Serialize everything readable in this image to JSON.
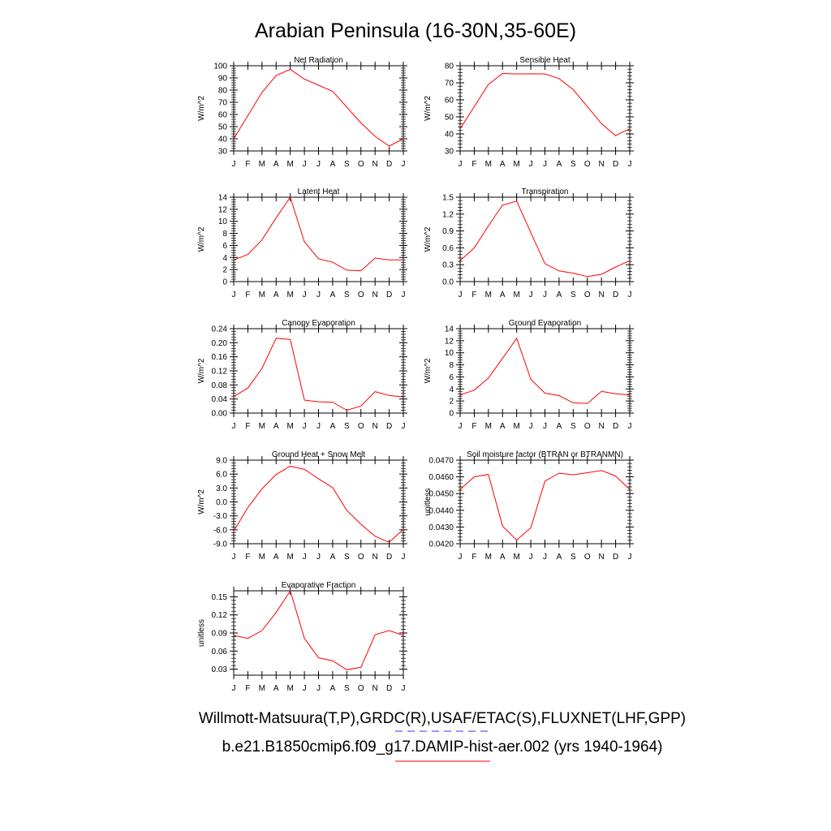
{
  "title": "Arabian Peninsula (16-30N,35-60E)",
  "legend": {
    "obs_label": "Willmott-Matsuura(T,P),GRDC(R),USAF/ETAC(S),FLUXNET(LHF,GPP)",
    "model_label": "b.e21.B1850cmip6.f09_g17.DAMIP-hist-aer.002 (yrs 1940-1964)",
    "obs_color": "#3333ff",
    "model_color": "#ff0000"
  },
  "month_labels": [
    "J",
    "F",
    "M",
    "A",
    "M",
    "J",
    "J",
    "A",
    "S",
    "O",
    "N",
    "D",
    "J"
  ],
  "chart_data": [
    {
      "type": "line",
      "title": "Net Radiation",
      "ylabel": "W/m^2",
      "ylim": [
        30,
        100
      ],
      "yticks": [
        30,
        40,
        50,
        60,
        70,
        80,
        90,
        100
      ],
      "ytick_labels": [
        "30",
        "40",
        "50",
        "60",
        "70",
        "80",
        "90",
        "100"
      ],
      "x": [
        "J",
        "F",
        "M",
        "A",
        "M",
        "J",
        "J",
        "A",
        "S",
        "O",
        "N",
        "D",
        "J"
      ],
      "series": [
        {
          "values": [
            40,
            59,
            78,
            92,
            97,
            89,
            84,
            79,
            66,
            53,
            42,
            34,
            40
          ]
        }
      ]
    },
    {
      "type": "line",
      "title": "Sensible Heat",
      "ylabel": "W/m^2",
      "ylim": [
        30,
        80
      ],
      "yticks": [
        30,
        40,
        50,
        60,
        70,
        80
      ],
      "ytick_labels": [
        "30",
        "40",
        "50",
        "60",
        "70",
        "80"
      ],
      "x": [
        "J",
        "F",
        "M",
        "A",
        "M",
        "J",
        "J",
        "A",
        "S",
        "O",
        "N",
        "D",
        "J"
      ],
      "series": [
        {
          "values": [
            43,
            56,
            69,
            75.5,
            75.2,
            75.3,
            75.2,
            72.5,
            66,
            56,
            46,
            39,
            43
          ]
        }
      ]
    },
    {
      "type": "line",
      "title": "Latent Heat",
      "ylabel": "W/m^2",
      "ylim": [
        0,
        14
      ],
      "yticks": [
        0,
        2,
        4,
        6,
        8,
        10,
        12,
        14
      ],
      "ytick_labels": [
        "0",
        "2",
        "4",
        "6",
        "8",
        "10",
        "12",
        "14"
      ],
      "x": [
        "J",
        "F",
        "M",
        "A",
        "M",
        "J",
        "J",
        "A",
        "S",
        "O",
        "N",
        "D",
        "J"
      ],
      "series": [
        {
          "values": [
            3.6,
            4.5,
            6.9,
            10.6,
            14.0,
            6.6,
            3.8,
            3.2,
            1.9,
            1.8,
            3.9,
            3.6,
            3.6
          ]
        }
      ]
    },
    {
      "type": "line",
      "title": "Transpiration",
      "ylabel": "W/m^2",
      "ylim": [
        0,
        1.5
      ],
      "yticks": [
        0,
        0.3,
        0.6,
        0.9,
        1.2,
        1.5
      ],
      "ytick_labels": [
        "0.0",
        "0.3",
        "0.6",
        "0.9",
        "1.2",
        "1.5"
      ],
      "x": [
        "J",
        "F",
        "M",
        "A",
        "M",
        "J",
        "J",
        "A",
        "S",
        "O",
        "N",
        "D",
        "J"
      ],
      "series": [
        {
          "values": [
            0.37,
            0.6,
            0.99,
            1.36,
            1.43,
            0.87,
            0.32,
            0.19,
            0.15,
            0.09,
            0.13,
            0.26,
            0.37
          ]
        }
      ]
    },
    {
      "type": "line",
      "title": "Canopy Evaporation",
      "ylabel": "W/m^2",
      "ylim": [
        0,
        0.24
      ],
      "yticks": [
        0,
        0.04,
        0.08,
        0.12,
        0.16,
        0.2,
        0.24
      ],
      "ytick_labels": [
        "0.00",
        "0.04",
        "0.08",
        "0.12",
        "0.16",
        "0.20",
        "0.24"
      ],
      "x": [
        "J",
        "F",
        "M",
        "A",
        "M",
        "J",
        "J",
        "A",
        "S",
        "O",
        "N",
        "D",
        "J"
      ],
      "series": [
        {
          "values": [
            0.047,
            0.071,
            0.127,
            0.213,
            0.209,
            0.037,
            0.032,
            0.031,
            0.008,
            0.02,
            0.061,
            0.05,
            0.046
          ]
        }
      ]
    },
    {
      "type": "line",
      "title": "Ground Evaporation",
      "ylabel": "W/m^2",
      "ylim": [
        0,
        14
      ],
      "yticks": [
        0,
        2,
        4,
        6,
        8,
        10,
        12,
        14
      ],
      "ytick_labels": [
        "0",
        "2",
        "4",
        "6",
        "8",
        "10",
        "12",
        "14"
      ],
      "x": [
        "J",
        "F",
        "M",
        "A",
        "M",
        "J",
        "J",
        "A",
        "S",
        "O",
        "N",
        "D",
        "J"
      ],
      "series": [
        {
          "values": [
            3.0,
            3.8,
            5.8,
            9.1,
            12.4,
            5.6,
            3.3,
            2.9,
            1.7,
            1.6,
            3.6,
            3.2,
            3.0
          ]
        }
      ]
    },
    {
      "type": "line",
      "title": "Ground Heat + Snow Melt",
      "ylabel": "W/m^2",
      "ylim": [
        -9,
        9
      ],
      "yticks": [
        -9,
        -6,
        -3,
        0,
        3,
        6,
        9
      ],
      "ytick_labels": [
        "-9.0",
        "-6.0",
        "-3.0",
        "0.0",
        "3.0",
        "6.0",
        "9.0"
      ],
      "x": [
        "J",
        "F",
        "M",
        "A",
        "M",
        "J",
        "J",
        "A",
        "S",
        "O",
        "N",
        "D",
        "J"
      ],
      "series": [
        {
          "values": [
            -6.3,
            -1.2,
            2.8,
            5.9,
            7.7,
            7.0,
            5.0,
            3.1,
            -1.8,
            -4.8,
            -7.4,
            -8.7,
            -5.9
          ]
        }
      ]
    },
    {
      "type": "line",
      "title": "Soil moisture factor (BTRAN or BTRANMN)",
      "ylabel": "unitless",
      "ylim": [
        0.042,
        0.047
      ],
      "yticks": [
        0.042,
        0.043,
        0.044,
        0.045,
        0.046,
        0.047
      ],
      "ytick_labels": [
        "0.0420",
        "0.0430",
        "0.0440",
        "0.0450",
        "0.0460",
        "0.0470"
      ],
      "x": [
        "J",
        "F",
        "M",
        "A",
        "M",
        "J",
        "J",
        "A",
        "S",
        "O",
        "N",
        "D",
        "J"
      ],
      "series": [
        {
          "values": [
            0.04525,
            0.046,
            0.04615,
            0.04305,
            0.04222,
            0.04295,
            0.04575,
            0.04622,
            0.04612,
            0.04625,
            0.04638,
            0.04605,
            0.04525
          ]
        }
      ]
    },
    {
      "type": "line",
      "title": "Evaporative Fraction",
      "ylabel": "unitless",
      "ylim": [
        0.02,
        0.16
      ],
      "yticks": [
        0.03,
        0.06,
        0.09,
        0.12,
        0.15
      ],
      "ytick_labels": [
        "0.03",
        "0.06",
        "0.09",
        "0.12",
        "0.15"
      ],
      "x": [
        "J",
        "F",
        "M",
        "A",
        "M",
        "J",
        "J",
        "A",
        "S",
        "O",
        "N",
        "D",
        "J"
      ],
      "series": [
        {
          "values": [
            0.086,
            0.081,
            0.094,
            0.124,
            0.16,
            0.081,
            0.049,
            0.044,
            0.029,
            0.033,
            0.087,
            0.094,
            0.086
          ]
        }
      ]
    }
  ]
}
